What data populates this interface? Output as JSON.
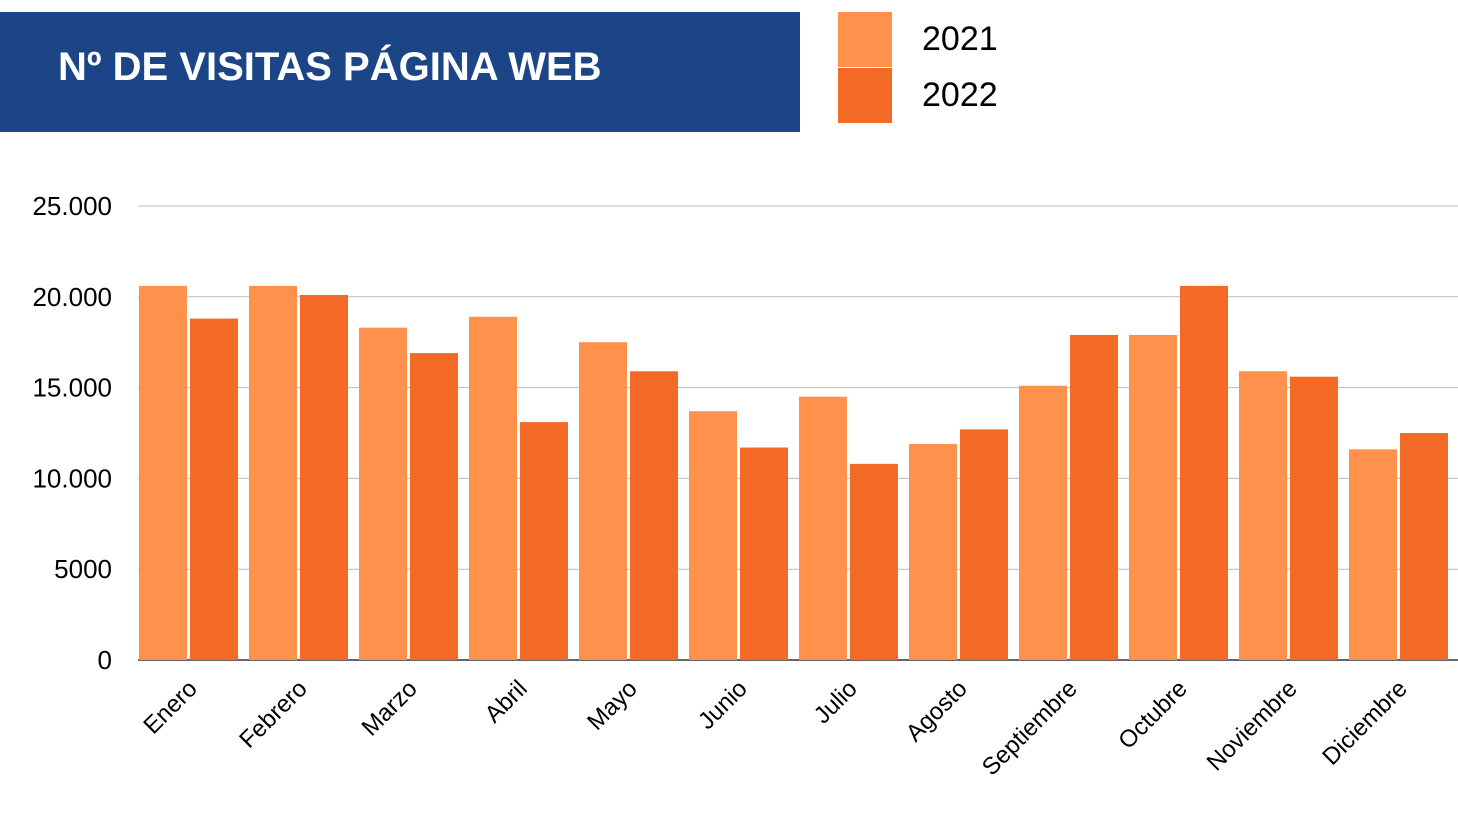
{
  "chart_data": {
    "type": "bar",
    "title": "Nº DE VISITAS PÁGINA WEB",
    "categories": [
      "Enero",
      "Febrero",
      "Marzo",
      "Abril",
      "Mayo",
      "Junio",
      "Julio",
      "Agosto",
      "Septiembre",
      "Octubre",
      "Noviembre",
      "Diciembre"
    ],
    "series": [
      {
        "name": "2021",
        "color": "#ff914d",
        "values": [
          20600,
          20600,
          18300,
          18900,
          17500,
          13700,
          14500,
          11900,
          15100,
          17900,
          15900,
          11600
        ]
      },
      {
        "name": "2022",
        "color": "#f26a25",
        "values": [
          18800,
          20100,
          16900,
          13100,
          15900,
          11700,
          10800,
          12700,
          17900,
          20600,
          15600,
          12500
        ]
      }
    ],
    "ylim": [
      0,
      25000
    ],
    "yticks": [
      0,
      5000,
      {
        "value": 10000,
        "label": "10.000"
      },
      {
        "value": 15000,
        "label": "15.000"
      },
      {
        "value": 20000,
        "label": "20.000"
      },
      {
        "value": 25000,
        "label": "25.000"
      }
    ],
    "grid": true
  }
}
